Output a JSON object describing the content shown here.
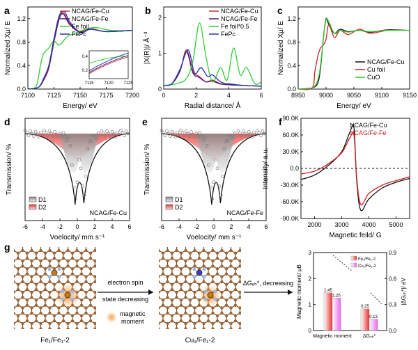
{
  "figure": {
    "panels": {
      "a": {
        "letter": "a",
        "xlabel": "Energy/ eV",
        "ylabel": "Normalized Xμ/ E",
        "xticks": [
          "7100",
          "7125",
          "7150",
          "7175",
          "7200"
        ],
        "yticks": [
          "0.0",
          "0.4",
          "0.8",
          "1.2"
        ],
        "legend": [
          "NCAG/Fe-Cu",
          "NCAG/Fe-Fe",
          "Fe foil",
          "FePc"
        ],
        "inset_xticks": [
          "7115",
          "7120",
          "7125"
        ],
        "inset_yticks": [
          "0.4",
          "0.2"
        ]
      },
      "b": {
        "letter": "b",
        "xlabel": "Radial distance/ Å",
        "ylabel": "|X(R)|/ Å⁻³",
        "xticks": [
          "0",
          "2",
          "4",
          "6"
        ],
        "yticks": [
          "0",
          "1",
          "2"
        ],
        "legend": [
          "NCAG/Fe-Cu",
          "NCAG/Fe-Fe",
          "Fe foil*0.5",
          "FePc"
        ]
      },
      "c": {
        "letter": "c",
        "xlabel": "Energy/ eV",
        "ylabel": "Normalized Xμ/ E",
        "xticks": [
          "8950",
          "9000",
          "9050",
          "9100",
          "9150"
        ],
        "yticks": [
          "0.0",
          "0.4",
          "0.8",
          "1.2"
        ],
        "legend": [
          "NCAG/Fe-Cu",
          "Cu foil",
          "CuO"
        ]
      },
      "d": {
        "letter": "d",
        "xlabel": "Voelocity/ mm s⁻¹",
        "ylabel": "Transmission/ %",
        "xticks": [
          "-6",
          "-4",
          "-2",
          "0",
          "2",
          "4",
          "6"
        ],
        "legend": [
          "D1",
          "D2"
        ],
        "sample": "NCAG/Fe-Cu"
      },
      "e": {
        "letter": "e",
        "xlabel": "Voelocity/ mm s⁻¹",
        "ylabel": "Transmission/ %",
        "xticks": [
          "-6",
          "-4",
          "-2",
          "0",
          "2",
          "4",
          "6"
        ],
        "legend": [
          "D1",
          "D2"
        ],
        "sample": "NCAG/Fe-Fe"
      },
      "f": {
        "letter": "f",
        "xlabel": "Magnetic feild/ G",
        "ylabel": "Intensity/ a.u.",
        "xticks": [
          "2000",
          "3000",
          "4000",
          "5000"
        ],
        "yticks": [
          "90.0K",
          "60.0K",
          "30.0K",
          "0.0",
          "-30.0K",
          "-60.0K",
          "-90.0K"
        ],
        "legend": [
          "NCAG/Fe-Cu",
          "NCAG/Fe-Fe"
        ]
      },
      "g": {
        "letter": "g",
        "struct1_label": "Fe₁/Fe₁-2",
        "struct2_label": "Cu₁/Fe₁-2",
        "arrow1_text_line1": "electron spin",
        "arrow1_text_line2": "state decreasing",
        "arrow2_text": "ΔGₒₕ*, decreasing",
        "magnetic_label_line1": "magnetic",
        "magnetic_label_line2": "moment",
        "bar_legend": [
          "Fe₁/Fe₁-2",
          "Cu₁/Fe₁-2"
        ],
        "bar_ylabel_left": "Magnetic moment/ μB",
        "bar_ylabel_right": "|ΔGₒₕ*|/ eV",
        "bar_yticks_left": [
          "0",
          "1",
          "2",
          "3"
        ],
        "bar_yticks_right": [
          "0.0",
          "0.3",
          "0.6",
          "0.9"
        ],
        "bar_xlabels": [
          "Magnetic moment",
          "ΔGₒₕ*"
        ]
      }
    }
  },
  "chart_data": [
    {
      "type": "line",
      "panel": "a",
      "title": "",
      "xlabel": "Energy/ eV",
      "ylabel": "Normalized Xμ/ E",
      "xlim": [
        7100,
        7200
      ],
      "ylim": [
        0,
        1.4
      ],
      "series": [
        {
          "name": "NCAG/Fe-Cu",
          "color": "#c0303a",
          "x": [
            7100,
            7110,
            7115,
            7120,
            7125,
            7130,
            7134,
            7140,
            7150,
            7160,
            7175,
            7200
          ],
          "y": [
            0.0,
            0.03,
            0.15,
            0.35,
            0.8,
            1.2,
            1.3,
            1.12,
            0.98,
            1.03,
            0.98,
            1.0
          ]
        },
        {
          "name": "NCAG/Fe-Fe",
          "color": "#4a1a6e",
          "x": [
            7100,
            7110,
            7115,
            7120,
            7125,
            7130,
            7134,
            7140,
            7150,
            7160,
            7175,
            7200
          ],
          "y": [
            0.0,
            0.03,
            0.16,
            0.38,
            0.82,
            1.2,
            1.28,
            1.1,
            0.97,
            1.02,
            0.98,
            1.0
          ]
        },
        {
          "name": "Fe foil",
          "color": "#33cc33",
          "x": [
            7100,
            7108,
            7112,
            7115,
            7120,
            7125,
            7130,
            7138,
            7145,
            7155,
            7165,
            7180,
            7200
          ],
          "y": [
            0.0,
            0.05,
            0.4,
            0.6,
            0.7,
            0.82,
            0.75,
            0.9,
            0.95,
            1.02,
            1.05,
            1.0,
            1.0
          ]
        },
        {
          "name": "FePc",
          "color": "#2233aa",
          "x": [
            7100,
            7110,
            7115,
            7120,
            7125,
            7130,
            7135,
            7140,
            7150,
            7160,
            7175,
            7200
          ],
          "y": [
            0.0,
            0.03,
            0.18,
            0.4,
            0.86,
            1.25,
            1.32,
            1.15,
            0.96,
            1.02,
            0.98,
            1.0
          ]
        }
      ]
    },
    {
      "type": "line",
      "panel": "b",
      "title": "",
      "xlabel": "Radial distance/ Å",
      "ylabel": "|X(R)|/ Å⁻³",
      "xlim": [
        0,
        6
      ],
      "ylim": [
        0,
        2.3
      ],
      "series": [
        {
          "name": "NCAG/Fe-Cu",
          "color": "#c0303a",
          "x": [
            0,
            0.5,
            1.0,
            1.4,
            1.8,
            2.2,
            2.6,
            3.0,
            3.5,
            4.0,
            5.0,
            6.0
          ],
          "y": [
            0.1,
            0.15,
            0.5,
            1.1,
            0.5,
            0.35,
            0.2,
            0.25,
            0.15,
            0.12,
            0.1,
            0.08
          ]
        },
        {
          "name": "NCAG/Fe-Fe",
          "color": "#4a1a6e",
          "x": [
            0,
            0.5,
            1.0,
            1.4,
            1.8,
            2.2,
            2.6,
            3.0,
            3.5,
            4.0,
            5.0,
            6.0
          ],
          "y": [
            0.1,
            0.15,
            0.5,
            1.05,
            0.45,
            0.32,
            0.2,
            0.22,
            0.14,
            0.12,
            0.1,
            0.08
          ]
        },
        {
          "name": "Fe foil*0.5",
          "color": "#33cc33",
          "x": [
            0,
            0.8,
            1.4,
            1.8,
            2.2,
            2.6,
            3.0,
            3.5,
            3.9,
            4.3,
            4.7,
            5.1,
            5.6,
            6.0
          ],
          "y": [
            0.1,
            0.15,
            0.3,
            0.8,
            1.85,
            0.9,
            0.2,
            0.6,
            0.25,
            1.15,
            0.4,
            0.6,
            0.15,
            0.2
          ]
        },
        {
          "name": "FePc",
          "color": "#2233aa",
          "x": [
            0,
            0.5,
            1.0,
            1.5,
            1.9,
            2.3,
            2.7,
            3.0,
            3.5,
            4.0,
            5.0,
            6.0
          ],
          "y": [
            0.1,
            0.15,
            0.55,
            1.1,
            0.45,
            0.6,
            0.35,
            0.4,
            0.2,
            0.15,
            0.1,
            0.08
          ]
        }
      ]
    },
    {
      "type": "line",
      "panel": "c",
      "title": "",
      "xlabel": "Energy/ eV",
      "ylabel": "Normalized Xμ/ E",
      "xlim": [
        8950,
        9150
      ],
      "ylim": [
        0,
        1.4
      ],
      "series": [
        {
          "name": "NCAG/Fe-Cu",
          "color": "#111111",
          "x": [
            8950,
            8975,
            8985,
            8990,
            8995,
            9000,
            9005,
            9015,
            9025,
            9040,
            9060,
            9080,
            9110,
            9150
          ],
          "y": [
            0.0,
            0.02,
            0.1,
            0.35,
            0.85,
            1.2,
            1.1,
            0.95,
            1.02,
            0.98,
            1.0,
            0.97,
            1.01,
            1.0
          ]
        },
        {
          "name": "Cu foil",
          "color": "#cc2222",
          "x": [
            8950,
            8975,
            8980,
            8985,
            8990,
            8995,
            9000,
            9005,
            9015,
            9025,
            9040,
            9060,
            9080,
            9110,
            9150
          ],
          "y": [
            0.0,
            0.02,
            0.3,
            0.55,
            0.7,
            0.75,
            0.85,
            1.1,
            0.88,
            1.0,
            0.93,
            1.02,
            0.95,
            1.0,
            1.0
          ]
        },
        {
          "name": "CuO",
          "color": "#33cc33",
          "x": [
            8950,
            8975,
            8985,
            8990,
            8995,
            9000,
            9005,
            9015,
            9025,
            9040,
            9060,
            9080,
            9110,
            9150
          ],
          "y": [
            0.0,
            0.02,
            0.15,
            0.4,
            0.85,
            1.18,
            1.15,
            0.95,
            1.0,
            0.97,
            1.0,
            0.98,
            1.0,
            1.0
          ]
        }
      ]
    },
    {
      "type": "scatter",
      "panel": "d",
      "xlabel": "Voelocity/ mm s⁻¹",
      "ylabel": "Transmission/ %",
      "xlim": [
        -6,
        6
      ],
      "legend": [
        "D1",
        "D2"
      ]
    },
    {
      "type": "scatter",
      "panel": "e",
      "xlabel": "Voelocity/ mm s⁻¹",
      "ylabel": "Transmission/ %",
      "xlim": [
        -6,
        6
      ],
      "legend": [
        "D1",
        "D2"
      ]
    },
    {
      "type": "line",
      "panel": "f",
      "xlabel": "Magnetic feild/ G",
      "ylabel": "Intensity/ a.u.",
      "xlim": [
        1500,
        5500
      ],
      "ylim": [
        -90000,
        90000
      ],
      "series": [
        {
          "name": "NCAG/Fe-Cu",
          "color": "#111111",
          "x": [
            1500,
            2000,
            2500,
            3000,
            3300,
            3450,
            3550,
            3700,
            4000,
            4500,
            5000,
            5500
          ],
          "y": [
            -20000,
            -12000,
            5000,
            30000,
            65000,
            73000,
            -20000,
            -75000,
            -55000,
            -35000,
            -25000,
            -18000
          ]
        },
        {
          "name": "NCAG/Fe-Fe",
          "color": "#cc2222",
          "x": [
            1500,
            2000,
            2500,
            3000,
            3300,
            3450,
            3550,
            3700,
            4000,
            4500,
            5000,
            5500
          ],
          "y": [
            -10000,
            -5000,
            8000,
            28000,
            55000,
            60000,
            -15000,
            -65000,
            -45000,
            -30000,
            -22000,
            -15000
          ]
        }
      ]
    },
    {
      "type": "bar",
      "panel": "g",
      "categories": [
        "Magnetic moment",
        "ΔGₒₕ*"
      ],
      "series": [
        {
          "name": "Fe₁/Fe₁-2",
          "values": [
            1.45,
            0.25
          ],
          "color": "#ee3333"
        },
        {
          "name": "Cu₁/Fe₁-2",
          "values": [
            1.25,
            0.13
          ],
          "color": "#ee66ee"
        }
      ],
      "data_labels": [
        "1.45",
        "1.25",
        "0.25",
        "0.13"
      ]
    }
  ]
}
